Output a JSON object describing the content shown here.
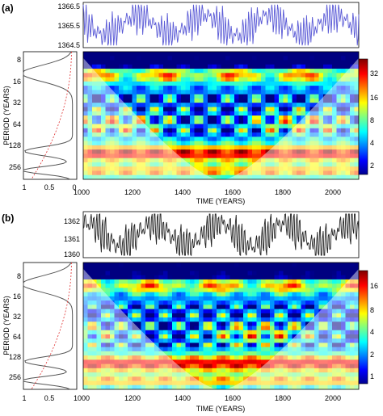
{
  "panels": [
    {
      "label": "(a)",
      "series_ticks": [
        "1366.5",
        "1365.5",
        "1364.5"
      ],
      "series_range": [
        1364.3,
        1366.7
      ],
      "series_color": "#5a5ad6",
      "period_ticks": [
        "8",
        "16",
        "32",
        "64",
        "128",
        "256"
      ],
      "period_axis_label": "PERIOD (YEARS)",
      "power_ticks": [
        "1",
        "0.5",
        "0"
      ],
      "time_ticks": [
        "1000",
        "1200",
        "1400",
        "1600",
        "1800",
        "2000"
      ],
      "time_axis_label": "TIME (YEARS)",
      "colorbar_ticks": [
        "32",
        "16",
        "8",
        "4",
        "2"
      ],
      "colorbar_max_label": "32"
    },
    {
      "label": "(b)",
      "series_ticks": [
        "1362",
        "1361",
        "1360"
      ],
      "series_range": [
        1359.6,
        1362.5
      ],
      "series_color": "#222222",
      "period_ticks": [
        "8",
        "16",
        "32",
        "64",
        "128",
        "256"
      ],
      "period_axis_label": "PERIOD (YEARS)",
      "power_ticks": [
        "1",
        "0.5"
      ],
      "time_ticks": [
        "1000",
        "1200",
        "1400",
        "1600",
        "1800",
        "2000"
      ],
      "time_axis_label": "TIME (YEARS)",
      "colorbar_ticks": [
        "16",
        "8",
        "4",
        "2",
        "1"
      ],
      "colorbar_max_label": "16"
    }
  ],
  "chart_data": [
    {
      "type": "heatmap",
      "title": "",
      "xlabel": "TIME (YEARS)",
      "ylabel": "PERIOD (YEARS)",
      "xlim": [
        1000,
        2100
      ],
      "ylim_period": [
        6,
        380
      ],
      "y_scale": "log2",
      "colorbar_range": [
        1.5,
        40
      ],
      "top_series": {
        "ylim": [
          1364.3,
          1366.7
        ],
        "ticks": [
          1364.5,
          1365.5,
          1366.5
        ]
      },
      "global_spectrum_xlim": [
        1,
        0
      ],
      "global_spectrum_peaks_period": [
        12,
        110,
        210
      ],
      "grid": false
    },
    {
      "type": "heatmap",
      "title": "",
      "xlabel": "TIME (YEARS)",
      "ylabel": "PERIOD (YEARS)",
      "xlim": [
        1000,
        2100
      ],
      "ylim_period": [
        6,
        380
      ],
      "y_scale": "log2",
      "colorbar_range": [
        0.8,
        20
      ],
      "top_series": {
        "ylim": [
          1359.6,
          1362.5
        ],
        "ticks": [
          1360,
          1361,
          1362
        ]
      },
      "global_spectrum_xlim": [
        1,
        0
      ],
      "global_spectrum_peaks_period": [
        12,
        110,
        210
      ],
      "grid": false
    }
  ]
}
